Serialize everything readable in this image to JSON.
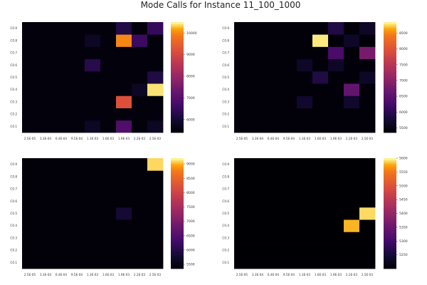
{
  "title": "Mode Calls for Instance 11_100_1000",
  "chart_data": [
    {
      "type": "heatmap",
      "x_ticks": [
        "2.5E-05",
        "3.3E-04",
        "6.4E-04",
        "9.5E-04",
        "1.3E-03",
        "1.6E-03",
        "1.9E-03",
        "2.2E-03",
        "2.5E-03"
      ],
      "y_ticks": [
        "C0.1",
        "C0.2",
        "C0.3",
        "C0.4",
        "C0.5",
        "C0.6",
        "C0.7",
        "C0.8",
        "C0.9"
      ],
      "zlim": [
        5400,
        10500
      ],
      "colorbar_ticks": [
        6000,
        7000,
        8000,
        9000,
        10000
      ],
      "values": [
        [
          5500,
          5500,
          5500,
          5500,
          5800,
          5500,
          6900,
          5500,
          5800
        ],
        [
          5500,
          5500,
          5500,
          5500,
          5500,
          5500,
          5500,
          5500,
          5500
        ],
        [
          5500,
          5500,
          5500,
          5500,
          5500,
          5500,
          9200,
          5500,
          5500
        ],
        [
          5500,
          5500,
          5500,
          5500,
          5500,
          5500,
          5500,
          5800,
          10400
        ],
        [
          5500,
          5500,
          5500,
          5500,
          5500,
          5500,
          5500,
          5500,
          6200
        ],
        [
          5500,
          5500,
          5500,
          5500,
          6300,
          5500,
          5500,
          5500,
          5500
        ],
        [
          5500,
          5500,
          5500,
          5500,
          5500,
          5500,
          5500,
          5500,
          5500
        ],
        [
          5500,
          5500,
          5500,
          5500,
          5800,
          5500,
          10000,
          6600,
          5500
        ],
        [
          5500,
          5500,
          5500,
          5500,
          5500,
          5500,
          6200,
          5500,
          6500
        ]
      ]
    },
    {
      "type": "heatmap",
      "x_ticks": [
        "2.5E-05",
        "3.3E-04",
        "6.4E-04",
        "9.5E-04",
        "1.3E-03",
        "1.6E-03",
        "1.9E-03",
        "2.2E-03",
        "2.5E-03"
      ],
      "y_ticks": [
        "C0.1",
        "C0.2",
        "C0.3",
        "C0.4",
        "C0.5",
        "C0.6",
        "C0.7",
        "C0.8",
        "C0.9"
      ],
      "zlim": [
        5350,
        8850
      ],
      "colorbar_ticks": [
        5500,
        6000,
        6500,
        7000,
        7500,
        8000,
        8500
      ],
      "values": [
        [
          5400,
          5400,
          5400,
          5400,
          5400,
          5400,
          5400,
          5400,
          5400
        ],
        [
          5400,
          5400,
          5400,
          5400,
          5400,
          5400,
          5400,
          5400,
          5400
        ],
        [
          5400,
          5400,
          5400,
          5400,
          5700,
          5400,
          5400,
          5700,
          5400
        ],
        [
          5400,
          5400,
          5400,
          5400,
          5400,
          5400,
          5400,
          6600,
          5400
        ],
        [
          5400,
          5400,
          5400,
          5400,
          5400,
          5900,
          5400,
          5400,
          5650
        ],
        [
          5400,
          5400,
          5400,
          5400,
          5650,
          5400,
          5650,
          5400,
          5400
        ],
        [
          5400,
          5400,
          5400,
          5400,
          5400,
          5400,
          6300,
          5400,
          6800
        ],
        [
          5400,
          5400,
          5400,
          5400,
          5400,
          8800,
          5400,
          5650,
          5400
        ],
        [
          5400,
          5400,
          5400,
          5400,
          5400,
          5400,
          5900,
          5400,
          5650
        ]
      ]
    },
    {
      "type": "heatmap",
      "x_ticks": [
        "2.5E-05",
        "3.3E-04",
        "6.4E-04",
        "9.5E-04",
        "1.3E-03",
        "1.6E-03",
        "1.9E-03",
        "2.2E-03",
        "2.5E-03"
      ],
      "y_ticks": [
        "C0.1",
        "C0.2",
        "C0.3",
        "C0.4",
        "C0.5",
        "C0.6",
        "C0.7",
        "C0.8",
        "C0.9"
      ],
      "zlim": [
        5350,
        9200
      ],
      "colorbar_ticks": [
        5500,
        6000,
        6500,
        7000,
        7500,
        8000,
        8500,
        9000
      ],
      "values": [
        [
          5400,
          5400,
          5400,
          5400,
          5400,
          5400,
          5400,
          5400,
          5400
        ],
        [
          5400,
          5400,
          5400,
          5400,
          5400,
          5400,
          5400,
          5400,
          5400
        ],
        [
          5400,
          5400,
          5400,
          5400,
          5400,
          5400,
          5400,
          5400,
          5400
        ],
        [
          5400,
          5400,
          5400,
          5400,
          5400,
          5400,
          5400,
          5400,
          5400
        ],
        [
          5400,
          5400,
          5400,
          5400,
          5400,
          5400,
          5800,
          5400,
          5400
        ],
        [
          5400,
          5400,
          5400,
          5400,
          5400,
          5400,
          5400,
          5400,
          5400
        ],
        [
          5400,
          5400,
          5400,
          5400,
          5400,
          5400,
          5400,
          5400,
          5400
        ],
        [
          5400,
          5400,
          5400,
          5400,
          5400,
          5400,
          5400,
          5400,
          5400
        ],
        [
          5400,
          5400,
          5400,
          5400,
          5400,
          5400,
          5400,
          5400,
          9100
        ]
      ]
    },
    {
      "type": "heatmap",
      "x_ticks": [
        "2.5E-05",
        "3.3E-04",
        "6.4E-04",
        "9.5E-04",
        "1.3E-03",
        "1.6E-03",
        "1.9E-03",
        "2.2E-03",
        "2.5E-03"
      ],
      "y_ticks": [
        "C0.1",
        "C0.2",
        "C0.3",
        "C0.4",
        "C0.5",
        "C0.6",
        "C0.7",
        "C0.8",
        "C0.9"
      ],
      "zlim": [
        5200,
        5600
      ],
      "colorbar_ticks": [
        5250,
        5300,
        5350,
        5400,
        5450,
        5500,
        5550,
        5600
      ],
      "values": [
        [
          5200,
          5200,
          5200,
          5200,
          5200,
          5200,
          5200,
          5200,
          5200
        ],
        [
          5200,
          5200,
          5200,
          5200,
          5200,
          5200,
          5200,
          5200,
          5200
        ],
        [
          5200,
          5200,
          5200,
          5200,
          5200,
          5200,
          5200,
          5200,
          5200
        ],
        [
          5200,
          5200,
          5200,
          5200,
          5200,
          5200,
          5200,
          5580,
          5200
        ],
        [
          5200,
          5200,
          5200,
          5200,
          5200,
          5200,
          5200,
          5200,
          5590
        ],
        [
          5200,
          5200,
          5200,
          5200,
          5200,
          5200,
          5200,
          5200,
          5200
        ],
        [
          5200,
          5200,
          5200,
          5200,
          5200,
          5200,
          5200,
          5200,
          5200
        ],
        [
          5200,
          5200,
          5200,
          5200,
          5200,
          5200,
          5200,
          5200,
          5200
        ],
        [
          5200,
          5200,
          5200,
          5200,
          5200,
          5200,
          5200,
          5200,
          5200
        ]
      ]
    }
  ]
}
